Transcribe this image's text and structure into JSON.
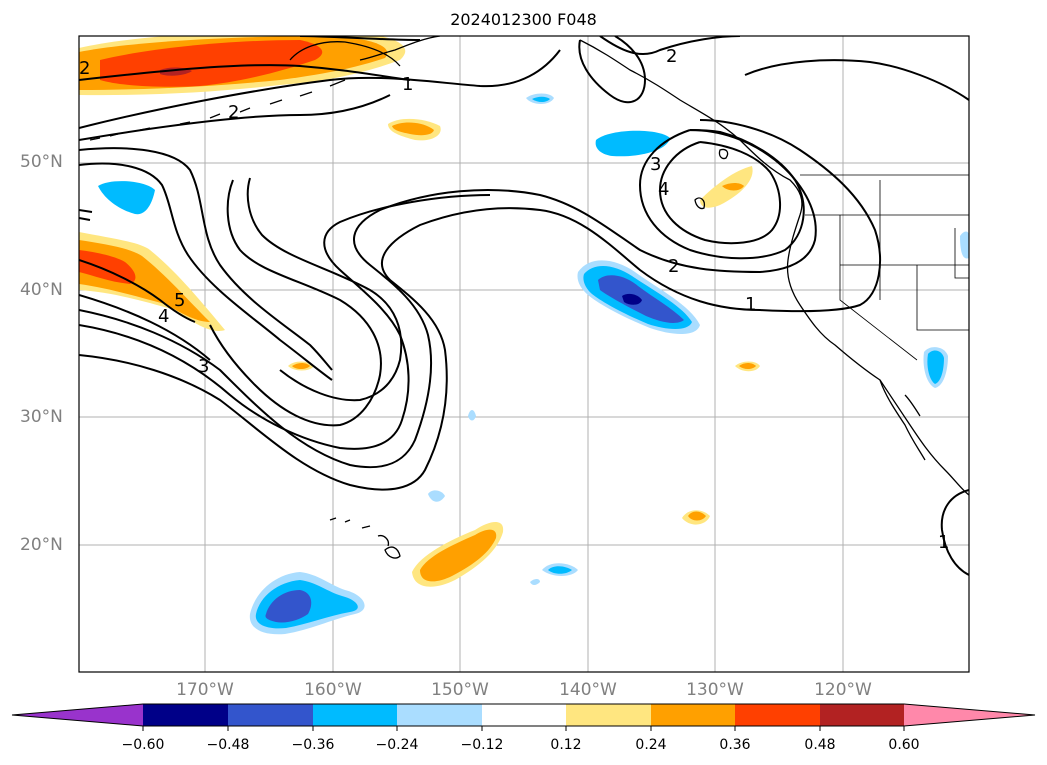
{
  "title": "2024012300 F048",
  "colors": {
    "ocean": "#ffffff",
    "coast": "#000000",
    "grid": "#b0b0b0",
    "contour": "#000000"
  },
  "map": {
    "lat_labels": [
      {
        "value": 50,
        "text": "50°N"
      },
      {
        "value": 40,
        "text": "40°N"
      },
      {
        "value": 30,
        "text": "30°N"
      },
      {
        "value": 20,
        "text": "20°N"
      }
    ],
    "lon_labels": [
      {
        "value": -170,
        "text": "170°W"
      },
      {
        "value": -160,
        "text": "160°W"
      },
      {
        "value": -150,
        "text": "150°W"
      },
      {
        "value": -140,
        "text": "140°W"
      },
      {
        "value": -130,
        "text": "130°W"
      },
      {
        "value": -120,
        "text": "120°W"
      }
    ],
    "contour_labels": [
      "1",
      "2",
      "3",
      "4",
      "5"
    ]
  },
  "colorbar": {
    "colors": [
      "#9933cc",
      "#000088",
      "#3355cc",
      "#00bbff",
      "#aaddff",
      "#ffffff",
      "#ffe680",
      "#ffa000",
      "#ff4000",
      "#b22222",
      "#ff88aa"
    ],
    "labels": [
      "−0.60",
      "−0.48",
      "−0.36",
      "−0.24",
      "−0.12",
      "0.12",
      "0.24",
      "0.36",
      "0.48",
      "0.60"
    ]
  }
}
